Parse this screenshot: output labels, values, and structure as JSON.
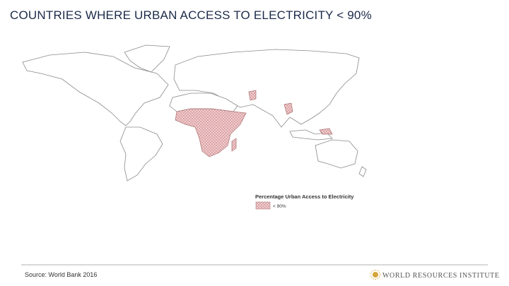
{
  "header": {
    "title": "COUNTRIES WHERE URBAN ACCESS TO ELECTRICITY < 90%"
  },
  "legend": {
    "title": "Percentage Urban Access to Electricity",
    "items": [
      {
        "label": "< 90%"
      }
    ]
  },
  "footer": {
    "source": "Source:  World Bank 2016",
    "logo": "WORLD RESOURCES INSTITUTE"
  }
}
